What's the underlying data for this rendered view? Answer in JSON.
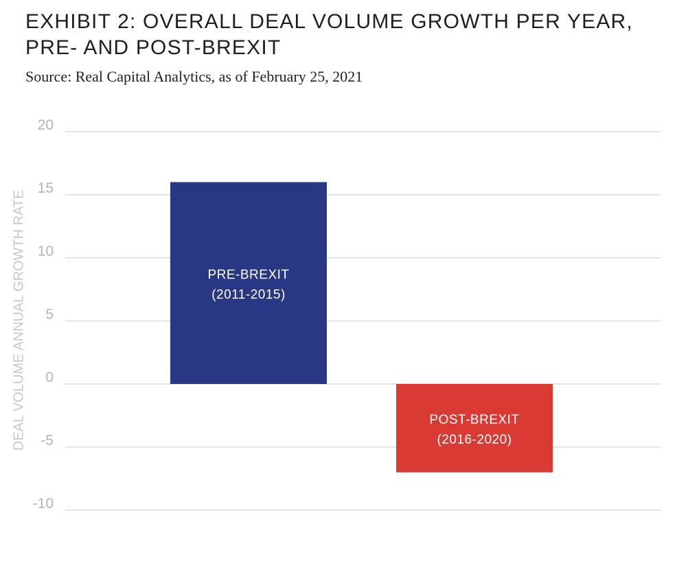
{
  "header": {
    "title": "EXHIBIT 2: OVERALL DEAL VOLUME GROWTH PER YEAR, PRE- AND POST-BREXIT",
    "source": "Source: Real Capital Analytics, as of February 25, 2021"
  },
  "chart_data": {
    "type": "bar",
    "title": "EXHIBIT 2: OVERALL DEAL VOLUME GROWTH PER YEAR, PRE- AND POST-BREXIT",
    "xlabel": "",
    "ylabel": "DEAL VOLUME ANNUAL GROWTH RATE",
    "ylim": [
      -10,
      20
    ],
    "yticks": [
      "20",
      "15",
      "10",
      "5",
      "0",
      "-5",
      "-10"
    ],
    "grid": true,
    "legend": "none",
    "categories": [
      [
        "PRE-BREXIT",
        "(2011-2015)"
      ],
      [
        "POST-BREXIT",
        "(2016-2020)"
      ]
    ],
    "values": [
      16,
      -7
    ],
    "colors": [
      "#283884",
      "#d93a33"
    ]
  }
}
